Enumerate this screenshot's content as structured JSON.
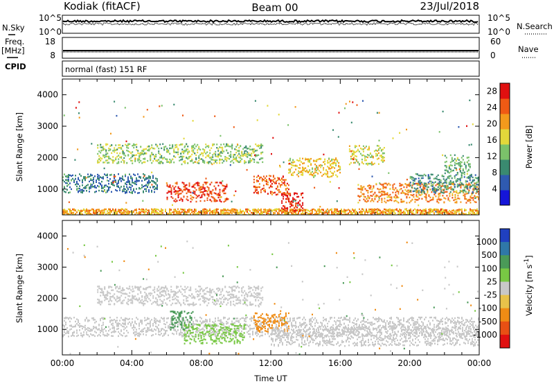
{
  "header": {
    "station": "Kodiak (fitACF)",
    "beam": "Beam 00",
    "date": "23/Jul/2018"
  },
  "side_labels": {
    "nsky": "N.Sky",
    "freq": "Freq.",
    "freq_unit": "[MHz]",
    "cpid": "CPID",
    "nsearch": "N.Search",
    "nave": "Nave"
  },
  "cpid_text": "normal (fast) 151 RF",
  "chart_data": [
    {
      "type": "line",
      "panel": "noise",
      "left_axis": {
        "name": "N.Sky",
        "scale": "log",
        "ticks": [
          "10^5",
          "10^0"
        ]
      },
      "right_axis": {
        "name": "N.Search",
        "scale": "log",
        "ticks": [
          "10^5",
          "10^0"
        ]
      },
      "xlim": [
        "00:00",
        "24:00"
      ],
      "series": [
        {
          "name": "N.Sky",
          "level": "10^5",
          "style": "solid"
        },
        {
          "name": "N.Search",
          "level": "10^5",
          "style": "dotted"
        }
      ]
    },
    {
      "type": "line",
      "panel": "frequency",
      "left_axis": {
        "name": "Freq. [MHz]",
        "ticks": [
          18,
          8
        ],
        "ylim": [
          8,
          18
        ]
      },
      "right_axis": {
        "name": "Nave",
        "ticks": [
          60,
          0
        ],
        "ylim": [
          0,
          60
        ]
      },
      "xlim": [
        "00:00",
        "24:00"
      ],
      "series": [
        {
          "name": "Freq.",
          "value": 10,
          "style": "solid"
        },
        {
          "name": "Nave",
          "style": "dotted"
        }
      ]
    },
    {
      "type": "heatmap",
      "panel": "power",
      "ylabel": "Slant Range [km]",
      "ylim": [
        180,
        4500
      ],
      "yticks": [
        1000,
        2000,
        3000,
        4000
      ],
      "xlim": [
        0,
        24
      ],
      "xticks": [
        "00:00",
        "04:00",
        "08:00",
        "12:00",
        "16:00",
        "20:00",
        "00:00"
      ],
      "colorbar": {
        "label": "Power [dB]",
        "ticks": [
          4,
          8,
          12,
          16,
          20,
          24,
          28
        ],
        "range": [
          0,
          30
        ],
        "colors": [
          "#1515d8",
          "#2f5ab0",
          "#3a8a70",
          "#7bc26a",
          "#e3d83a",
          "#f39a1c",
          "#ef5a14",
          "#e01010"
        ]
      },
      "features": [
        {
          "t_start": 0.0,
          "t_end": 24.0,
          "range_km": 280,
          "value": 20
        },
        {
          "t_start": 0.0,
          "t_end": 5.5,
          "range_km": 1200,
          "value": 8
        },
        {
          "t_start": 2.0,
          "t_end": 11.5,
          "range_km": 2150,
          "value": 14
        },
        {
          "t_start": 6.0,
          "t_end": 9.5,
          "range_km": 930,
          "value": 26
        },
        {
          "t_start": 11.0,
          "t_end": 13.0,
          "range_km": 1150,
          "value": 24
        },
        {
          "t_start": 12.6,
          "t_end": 13.8,
          "range_km": 600,
          "value": 28
        },
        {
          "t_start": 13.0,
          "t_end": 16.0,
          "range_km": 1700,
          "value": 18
        },
        {
          "t_start": 16.5,
          "t_end": 18.5,
          "range_km": 2100,
          "value": 16
        },
        {
          "t_start": 17.0,
          "t_end": 24.0,
          "range_km": 900,
          "value": 22
        },
        {
          "t_start": 20.0,
          "t_end": 24.0,
          "range_km": 1200,
          "value": 10
        },
        {
          "t_start": 22.0,
          "t_end": 23.5,
          "range_km": 1800,
          "value": 12
        }
      ]
    },
    {
      "type": "heatmap",
      "panel": "velocity",
      "ylabel": "Slant Range [km]",
      "ylim": [
        180,
        4500
      ],
      "yticks": [
        1000,
        2000,
        3000,
        4000
      ],
      "xlim": [
        0,
        24
      ],
      "xlabel": "Time UT",
      "xticks": [
        "00:00",
        "04:00",
        "08:00",
        "12:00",
        "16:00",
        "20:00",
        "00:00"
      ],
      "colorbar": {
        "label": "Velocity [m s^-1]",
        "ticks": [
          1000,
          500,
          100,
          25,
          -25,
          -100,
          -500,
          -1000
        ],
        "colors": [
          "#2040c0",
          "#2f78a8",
          "#4a9a58",
          "#78c844",
          "#c8c8c8",
          "#e8c24a",
          "#f08c14",
          "#e85014",
          "#e01010"
        ]
      },
      "features": [
        {
          "t_start": 0.0,
          "t_end": 24.0,
          "range_km": 1100,
          "value": 0
        },
        {
          "t_start": 2.0,
          "t_end": 11.5,
          "range_km": 2100,
          "value": 0
        },
        {
          "t_start": 6.2,
          "t_end": 7.5,
          "range_km": 1300,
          "value": 200
        },
        {
          "t_start": 7.0,
          "t_end": 10.5,
          "range_km": 880,
          "value": 60
        },
        {
          "t_start": 11.0,
          "t_end": 13.0,
          "range_km": 1250,
          "value": -300
        },
        {
          "t_start": 12.0,
          "t_end": 24.0,
          "range_km": 800,
          "value": 0
        }
      ]
    }
  ],
  "x_axis": {
    "ticks": [
      "00:00",
      "04:00",
      "08:00",
      "12:00",
      "16:00",
      "20:00",
      "00:00"
    ],
    "title": "Time UT"
  }
}
